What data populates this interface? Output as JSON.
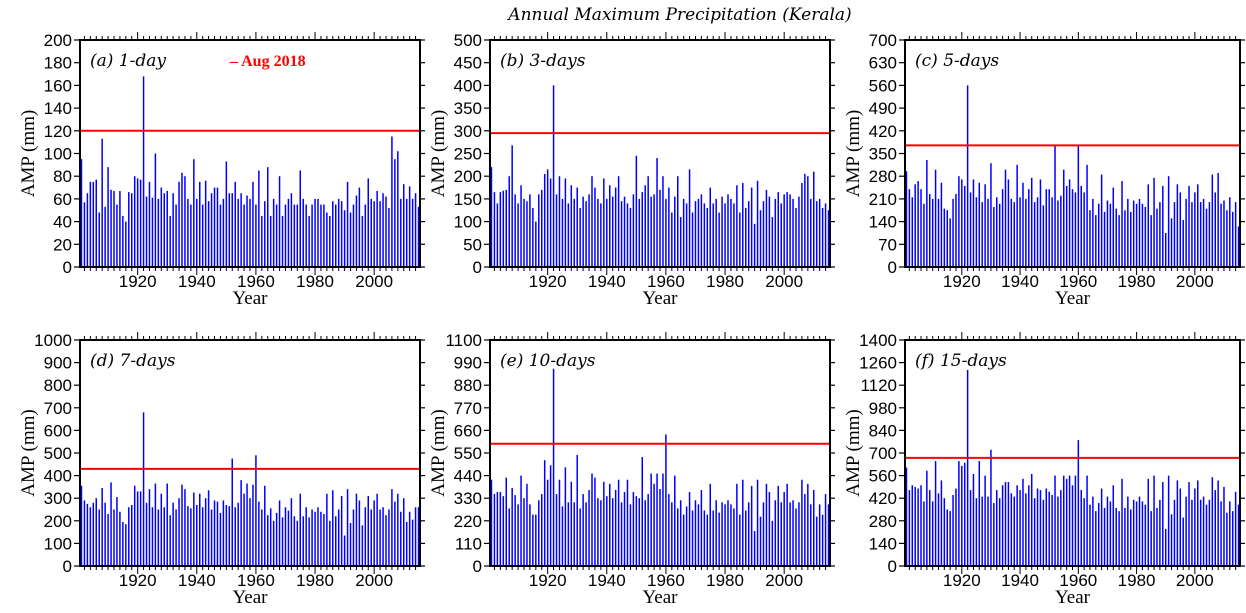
{
  "figure": {
    "title": "Annual Maximum Precipitation (Kerala)",
    "legend_label": "– Aug 2018"
  },
  "colors": {
    "bars": "#0000ff",
    "threshold": "#ff0000",
    "axes": "#000000"
  },
  "chart_data": [
    {
      "type": "bar",
      "panel_label": "(a) 1-day",
      "xlabel": "Year",
      "ylabel": "AMP (mm)",
      "xlim": [
        1901,
        2015
      ],
      "ylim": [
        0,
        200
      ],
      "yticks": [
        0,
        20,
        40,
        60,
        80,
        100,
        120,
        140,
        160,
        180,
        200
      ],
      "xticks": [
        1920,
        1940,
        1960,
        1980,
        2000
      ],
      "threshold": {
        "name": "Aug 2018",
        "value": 120
      },
      "x_start": 1901,
      "values": [
        95,
        57,
        65,
        75,
        75,
        77,
        48,
        113,
        53,
        88,
        68,
        67,
        55,
        67,
        45,
        40,
        66,
        65,
        80,
        78,
        77,
        168,
        62,
        75,
        61,
        100,
        60,
        70,
        65,
        67,
        45,
        65,
        55,
        75,
        83,
        80,
        60,
        55,
        95,
        60,
        75,
        55,
        76,
        58,
        65,
        70,
        70,
        55,
        60,
        93,
        65,
        65,
        75,
        60,
        65,
        55,
        63,
        60,
        75,
        55,
        85,
        45,
        58,
        88,
        45,
        60,
        55,
        80,
        45,
        55,
        60,
        65,
        55,
        55,
        85,
        60,
        55,
        45,
        55,
        60,
        60,
        55,
        55,
        48,
        45,
        58,
        55,
        60,
        58,
        50,
        75,
        48,
        55,
        63,
        70,
        45,
        55,
        78,
        60,
        58,
        67,
        58,
        65,
        62,
        52,
        115,
        95,
        102,
        60,
        73,
        60,
        71,
        60,
        65,
        53
      ]
    },
    {
      "type": "bar",
      "panel_label": "(b) 3-days",
      "xlabel": "Year",
      "ylabel": "AMP (mm)",
      "xlim": [
        1901,
        2015
      ],
      "ylim": [
        0,
        500
      ],
      "yticks": [
        0,
        50,
        100,
        150,
        200,
        250,
        300,
        350,
        400,
        450,
        500
      ],
      "xticks": [
        1920,
        1940,
        1960,
        1980,
        2000
      ],
      "threshold": {
        "name": "Aug 2018",
        "value": 295
      },
      "x_start": 1901,
      "values": [
        220,
        165,
        140,
        165,
        168,
        170,
        200,
        268,
        160,
        140,
        180,
        150,
        145,
        160,
        130,
        100,
        160,
        170,
        205,
        215,
        195,
        400,
        160,
        200,
        150,
        195,
        140,
        180,
        150,
        175,
        130,
        155,
        145,
        160,
        200,
        175,
        150,
        140,
        195,
        150,
        180,
        155,
        175,
        200,
        145,
        155,
        140,
        130,
        160,
        245,
        150,
        165,
        180,
        200,
        155,
        160,
        240,
        170,
        200,
        150,
        175,
        120,
        155,
        200,
        110,
        150,
        140,
        215,
        120,
        145,
        150,
        160,
        140,
        130,
        175,
        140,
        150,
        120,
        155,
        140,
        160,
        150,
        140,
        180,
        120,
        185,
        130,
        145,
        175,
        95,
        190,
        125,
        145,
        170,
        155,
        110,
        150,
        165,
        140,
        160,
        165,
        160,
        150,
        130,
        155,
        185,
        205,
        200,
        150,
        210,
        145,
        150,
        130,
        140,
        125
      ]
    },
    {
      "type": "bar",
      "panel_label": "(c) 5-days",
      "xlabel": "Year",
      "ylabel": "AMP (mm)",
      "xlim": [
        1901,
        2015
      ],
      "ylim": [
        0,
        700
      ],
      "yticks": [
        0,
        70,
        140,
        210,
        280,
        350,
        420,
        490,
        560,
        630,
        700
      ],
      "xticks": [
        1920,
        1940,
        1960,
        1980,
        2000
      ],
      "threshold": {
        "name": "Aug 2018",
        "value": 375
      },
      "x_start": 1901,
      "values": [
        295,
        240,
        215,
        255,
        265,
        240,
        195,
        330,
        225,
        210,
        300,
        210,
        260,
        180,
        175,
        150,
        210,
        225,
        280,
        270,
        250,
        560,
        230,
        270,
        215,
        260,
        200,
        255,
        210,
        320,
        185,
        215,
        195,
        240,
        300,
        270,
        210,
        200,
        315,
        215,
        260,
        210,
        240,
        275,
        200,
        215,
        270,
        190,
        240,
        240,
        215,
        375,
        205,
        220,
        300,
        250,
        270,
        240,
        230,
        375,
        250,
        230,
        315,
        175,
        210,
        160,
        195,
        285,
        170,
        205,
        195,
        245,
        180,
        160,
        265,
        175,
        210,
        170,
        205,
        195,
        210,
        195,
        185,
        255,
        160,
        275,
        180,
        200,
        250,
        105,
        280,
        150,
        200,
        255,
        230,
        145,
        210,
        250,
        200,
        230,
        255,
        200,
        210,
        180,
        200,
        285,
        230,
        290,
        195,
        205,
        175,
        215,
        170,
        200,
        125
      ]
    },
    {
      "type": "bar",
      "panel_label": "(d) 7-days",
      "xlabel": "Year",
      "ylabel": "AMP (mm)",
      "xlim": [
        1901,
        2015
      ],
      "ylim": [
        0,
        1000
      ],
      "yticks": [
        0,
        100,
        200,
        300,
        400,
        500,
        600,
        700,
        800,
        900,
        1000
      ],
      "xticks": [
        1920,
        1940,
        1960,
        1980,
        2000
      ],
      "threshold": {
        "name": "Aug 2018",
        "value": 430
      },
      "x_start": 1901,
      "values": [
        355,
        290,
        275,
        260,
        280,
        300,
        250,
        345,
        280,
        230,
        370,
        250,
        305,
        240,
        195,
        185,
        260,
        270,
        355,
        330,
        330,
        680,
        280,
        340,
        260,
        365,
        250,
        320,
        260,
        365,
        225,
        280,
        250,
        300,
        360,
        340,
        265,
        255,
        325,
        270,
        320,
        260,
        300,
        335,
        250,
        290,
        285,
        235,
        290,
        270,
        265,
        475,
        260,
        280,
        380,
        320,
        365,
        300,
        360,
        490,
        285,
        250,
        355,
        225,
        255,
        200,
        235,
        290,
        215,
        260,
        245,
        300,
        220,
        200,
        320,
        220,
        260,
        215,
        250,
        240,
        260,
        240,
        230,
        320,
        200,
        335,
        220,
        250,
        310,
        135,
        340,
        190,
        250,
        320,
        290,
        180,
        260,
        310,
        250,
        290,
        320,
        250,
        260,
        225,
        250,
        340,
        285,
        320,
        240,
        300,
        195,
        240,
        205,
        260,
        260
      ]
    },
    {
      "type": "bar",
      "panel_label": "(e) 10-days",
      "xlabel": "Year",
      "ylabel": "AMP (mm)",
      "xlim": [
        1901,
        2015
      ],
      "ylim": [
        0,
        1100
      ],
      "yticks": [
        0,
        110,
        220,
        330,
        440,
        550,
        660,
        770,
        880,
        990,
        1100
      ],
      "xticks": [
        1920,
        1940,
        1960,
        1980,
        2000
      ],
      "threshold": {
        "name": "Aug 2018",
        "value": 595
      },
      "x_start": 1901,
      "values": [
        420,
        350,
        360,
        360,
        340,
        430,
        280,
        380,
        345,
        300,
        440,
        330,
        400,
        300,
        250,
        250,
        320,
        350,
        515,
        420,
        490,
        960,
        350,
        420,
        290,
        480,
        310,
        410,
        310,
        540,
        280,
        350,
        310,
        370,
        450,
        430,
        330,
        320,
        410,
        340,
        400,
        330,
        370,
        420,
        310,
        360,
        420,
        300,
        360,
        340,
        330,
        530,
        320,
        350,
        450,
        400,
        450,
        375,
        450,
        640,
        350,
        310,
        440,
        280,
        320,
        250,
        290,
        360,
        270,
        320,
        300,
        370,
        270,
        250,
        400,
        270,
        320,
        260,
        310,
        300,
        320,
        300,
        280,
        400,
        250,
        420,
        270,
        310,
        390,
        170,
        420,
        240,
        310,
        400,
        360,
        220,
        320,
        390,
        310,
        360,
        400,
        310,
        320,
        280,
        310,
        420,
        350,
        400,
        300,
        370,
        240,
        300,
        250,
        350,
        300
      ]
    },
    {
      "type": "bar",
      "panel_label": "(f) 15-days",
      "xlabel": "Year",
      "ylabel": "AMP (mm)",
      "xlim": [
        1901,
        2015
      ],
      "ylim": [
        0,
        1400
      ],
      "yticks": [
        0,
        140,
        280,
        420,
        560,
        700,
        840,
        980,
        1120,
        1260,
        1400
      ],
      "xticks": [
        1920,
        1940,
        1960,
        1980,
        2000
      ],
      "threshold": {
        "name": "Aug 2018",
        "value": 670
      },
      "x_start": 1901,
      "values": [
        610,
        470,
        500,
        490,
        480,
        500,
        400,
        590,
        470,
        400,
        650,
        450,
        530,
        420,
        350,
        340,
        440,
        480,
        650,
        620,
        640,
        1215,
        470,
        570,
        420,
        650,
        430,
        560,
        430,
        720,
        390,
        470,
        420,
        500,
        520,
        520,
        450,
        430,
        500,
        470,
        540,
        450,
        500,
        570,
        420,
        480,
        470,
        410,
        480,
        460,
        440,
        560,
        430,
        470,
        560,
        540,
        560,
        500,
        560,
        780,
        470,
        420,
        560,
        380,
        430,
        340,
        390,
        480,
        360,
        430,
        400,
        500,
        360,
        340,
        540,
        360,
        430,
        350,
        410,
        400,
        430,
        400,
        380,
        540,
        340,
        560,
        360,
        410,
        520,
        230,
        560,
        320,
        410,
        530,
        480,
        300,
        430,
        520,
        410,
        480,
        530,
        410,
        430,
        380,
        410,
        550,
        470,
        530,
        400,
        490,
        330,
        400,
        340,
        460,
        380
      ]
    }
  ]
}
